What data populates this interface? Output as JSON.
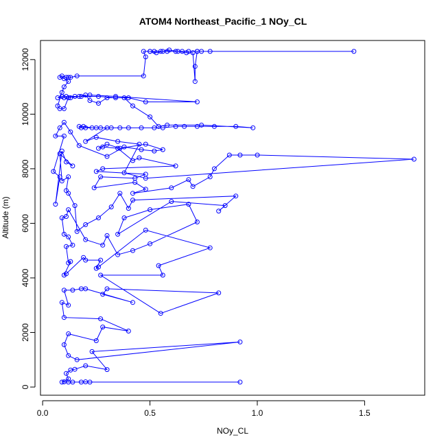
{
  "chart_data": {
    "type": "line",
    "title": "ATOM4 Northeast_Pacific_1 NOy_CL",
    "xlabel": "NOy_CL",
    "ylabel": "Altitude (m)",
    "xlim": [
      -0.01,
      1.78
    ],
    "ylim": [
      -300,
      12700
    ],
    "x_ticks": [
      0.0,
      0.5,
      1.0,
      1.5
    ],
    "x_tick_labels": [
      "0.0",
      "0.5",
      "1.0",
      "1.5"
    ],
    "y_ticks": [
      0,
      2000,
      4000,
      6000,
      8000,
      10000,
      12000
    ],
    "y_tick_labels": [
      "0",
      "2000",
      "4000",
      "6000",
      "8000",
      "10000",
      "12000"
    ],
    "grid": false,
    "legend": "none",
    "series": [
      {
        "color": "#0000ff",
        "marker": "open-circle",
        "points": [
          [
            0.92,
            180
          ],
          [
            0.22,
            180
          ],
          [
            0.2,
            190
          ],
          [
            0.18,
            180
          ],
          [
            0.14,
            180
          ],
          [
            0.12,
            180
          ],
          [
            0.1,
            190
          ],
          [
            0.09,
            180
          ],
          [
            0.12,
            300
          ],
          [
            0.11,
            500
          ],
          [
            0.13,
            620
          ],
          [
            0.15,
            650
          ],
          [
            0.2,
            780
          ],
          [
            0.3,
            640
          ],
          [
            0.23,
            1300
          ],
          [
            0.92,
            1650
          ],
          [
            0.16,
            1000
          ],
          [
            0.12,
            1150
          ],
          [
            0.1,
            1550
          ],
          [
            0.12,
            1950
          ],
          [
            0.25,
            1700
          ],
          [
            0.28,
            2200
          ],
          [
            0.4,
            2050
          ],
          [
            0.27,
            2500
          ],
          [
            0.1,
            2550
          ],
          [
            0.09,
            3100
          ],
          [
            0.12,
            3000
          ],
          [
            0.1,
            3550
          ],
          [
            0.14,
            3550
          ],
          [
            0.18,
            3600
          ],
          [
            0.2,
            3600
          ],
          [
            0.42,
            3100
          ],
          [
            0.28,
            3400
          ],
          [
            0.3,
            3600
          ],
          [
            0.82,
            3450
          ],
          [
            0.55,
            2700
          ],
          [
            0.27,
            4100
          ],
          [
            0.56,
            4100
          ],
          [
            0.54,
            4450
          ],
          [
            0.78,
            5100
          ],
          [
            0.48,
            5750
          ],
          [
            0.26,
            4400
          ],
          [
            0.25,
            4350
          ],
          [
            0.27,
            4650
          ],
          [
            0.2,
            4650
          ],
          [
            0.19,
            4750
          ],
          [
            0.11,
            4150
          ],
          [
            0.1,
            4100
          ],
          [
            0.13,
            4600
          ],
          [
            0.12,
            4550
          ],
          [
            0.11,
            5150
          ],
          [
            0.14,
            5200
          ],
          [
            0.12,
            5500
          ],
          [
            0.1,
            5600
          ],
          [
            0.09,
            6200
          ],
          [
            0.11,
            6250
          ],
          [
            0.12,
            6500
          ],
          [
            0.2,
            5400
          ],
          [
            0.28,
            5200
          ],
          [
            0.3,
            5550
          ],
          [
            0.35,
            4850
          ],
          [
            0.42,
            5000
          ],
          [
            0.5,
            5250
          ],
          [
            0.72,
            6050
          ],
          [
            0.68,
            6700
          ],
          [
            0.5,
            6500
          ],
          [
            0.38,
            6200
          ],
          [
            0.35,
            5600
          ],
          [
            0.6,
            6800
          ],
          [
            0.85,
            6650
          ],
          [
            0.82,
            6450
          ],
          [
            0.9,
            7000
          ],
          [
            0.42,
            6850
          ],
          [
            0.4,
            6550
          ],
          [
            0.36,
            7100
          ],
          [
            0.32,
            6600
          ],
          [
            0.26,
            6200
          ],
          [
            0.2,
            5950
          ],
          [
            0.16,
            5700
          ],
          [
            0.15,
            6650
          ],
          [
            0.12,
            7100
          ],
          [
            0.11,
            7200
          ],
          [
            0.12,
            7700
          ],
          [
            0.09,
            7550
          ],
          [
            0.08,
            8550
          ],
          [
            0.14,
            8100
          ],
          [
            0.11,
            8250
          ],
          [
            0.09,
            8650
          ],
          [
            0.06,
            6700
          ],
          [
            0.08,
            7700
          ],
          [
            0.05,
            7900
          ],
          [
            0.1,
            9200
          ],
          [
            0.06,
            9200
          ],
          [
            0.08,
            9500
          ],
          [
            0.1,
            9700
          ],
          [
            0.13,
            9350
          ],
          [
            0.17,
            8850
          ],
          [
            0.3,
            8450
          ],
          [
            0.38,
            8800
          ],
          [
            0.46,
            8700
          ],
          [
            0.52,
            8650
          ],
          [
            0.56,
            8700
          ],
          [
            0.48,
            8900
          ],
          [
            0.36,
            8750
          ],
          [
            0.3,
            8900
          ],
          [
            0.26,
            8750
          ],
          [
            0.28,
            8800
          ],
          [
            0.35,
            8750
          ],
          [
            0.42,
            8300
          ],
          [
            0.45,
            8400
          ],
          [
            0.62,
            8100
          ],
          [
            0.28,
            8000
          ],
          [
            0.25,
            7900
          ],
          [
            0.48,
            7800
          ],
          [
            0.43,
            7650
          ],
          [
            0.27,
            7700
          ],
          [
            0.24,
            7300
          ],
          [
            0.43,
            7500
          ],
          [
            0.48,
            7250
          ],
          [
            0.42,
            7100
          ],
          [
            0.6,
            7300
          ],
          [
            0.68,
            7600
          ],
          [
            0.7,
            7350
          ],
          [
            0.78,
            7700
          ],
          [
            0.8,
            8000
          ],
          [
            0.87,
            8500
          ],
          [
            0.92,
            8500
          ],
          [
            1.0,
            8500
          ],
          [
            1.73,
            8350
          ],
          [
            0.48,
            7650
          ],
          [
            0.38,
            7850
          ],
          [
            0.45,
            8900
          ],
          [
            0.35,
            9000
          ],
          [
            0.25,
            9150
          ],
          [
            0.2,
            9000
          ],
          [
            0.3,
            9500
          ],
          [
            0.25,
            9500
          ],
          [
            0.2,
            9500
          ],
          [
            0.18,
            9500
          ],
          [
            0.17,
            9550
          ],
          [
            0.19,
            9550
          ],
          [
            0.23,
            9500
          ],
          [
            0.27,
            9500
          ],
          [
            0.32,
            9500
          ],
          [
            0.36,
            9500
          ],
          [
            0.4,
            9500
          ],
          [
            0.46,
            9500
          ],
          [
            0.52,
            9500
          ],
          [
            0.56,
            9500
          ],
          [
            0.62,
            9550
          ],
          [
            0.66,
            9550
          ],
          [
            0.72,
            9550
          ],
          [
            0.8,
            9550
          ],
          [
            0.9,
            9550
          ],
          [
            0.98,
            9500
          ],
          [
            0.74,
            9600
          ],
          [
            0.58,
            9600
          ],
          [
            0.54,
            9550
          ],
          [
            0.5,
            9900
          ],
          [
            0.42,
            10300
          ],
          [
            0.38,
            10600
          ],
          [
            0.3,
            10600
          ],
          [
            0.26,
            10400
          ],
          [
            0.22,
            10500
          ],
          [
            0.2,
            10700
          ],
          [
            0.17,
            10650
          ],
          [
            0.15,
            10650
          ],
          [
            0.13,
            10600
          ],
          [
            0.1,
            10600
          ],
          [
            0.07,
            10600
          ],
          [
            0.09,
            10650
          ],
          [
            0.11,
            10650
          ],
          [
            0.18,
            10650
          ],
          [
            0.26,
            10650
          ],
          [
            0.34,
            10600
          ],
          [
            0.4,
            10600
          ],
          [
            0.48,
            10450
          ],
          [
            0.72,
            10450
          ],
          [
            0.34,
            10650
          ],
          [
            0.22,
            10700
          ],
          [
            0.12,
            10600
          ],
          [
            0.1,
            10200
          ],
          [
            0.08,
            10200
          ],
          [
            0.07,
            10300
          ],
          [
            0.09,
            10800
          ],
          [
            0.1,
            11000
          ],
          [
            0.12,
            11200
          ],
          [
            0.1,
            11300
          ],
          [
            0.08,
            11350
          ],
          [
            0.09,
            11400
          ],
          [
            0.11,
            11350
          ],
          [
            0.12,
            11350
          ],
          [
            0.13,
            11350
          ],
          [
            0.16,
            11400
          ],
          [
            0.47,
            11400
          ],
          [
            0.48,
            12100
          ],
          [
            0.47,
            12300
          ],
          [
            0.5,
            12300
          ],
          [
            0.52,
            12300
          ],
          [
            0.55,
            12300
          ],
          [
            0.58,
            12300
          ],
          [
            0.62,
            12300
          ],
          [
            0.65,
            12300
          ],
          [
            0.68,
            12300
          ],
          [
            0.72,
            12300
          ],
          [
            0.74,
            12300
          ],
          [
            0.78,
            12300
          ],
          [
            1.45,
            12300
          ],
          [
            0.72,
            12300
          ],
          [
            0.71,
            11750
          ],
          [
            0.71,
            11200
          ],
          [
            0.7,
            12250
          ],
          [
            0.67,
            12250
          ],
          [
            0.63,
            12300
          ],
          [
            0.59,
            12350
          ],
          [
            0.56,
            12300
          ],
          [
            0.53,
            12250
          ],
          [
            0.5,
            12300
          ]
        ]
      }
    ]
  }
}
